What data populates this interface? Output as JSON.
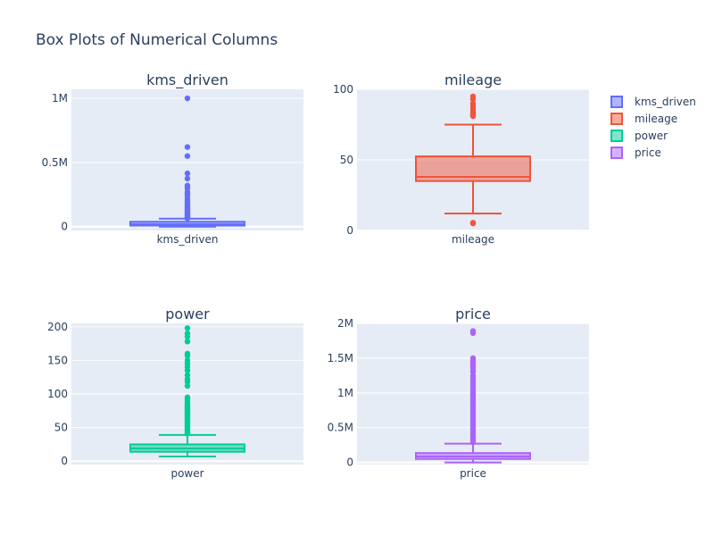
{
  "chart_data": {
    "type": "box",
    "title": "Box Plots of Numerical Columns",
    "legend": {
      "placement": "top-right",
      "entries": [
        "kms_driven",
        "mileage",
        "power",
        "price"
      ]
    },
    "subplots": [
      {
        "title": "kms_driven",
        "category": "kms_driven",
        "color": "#636efa",
        "ylim": [
          -30000,
          1070000
        ],
        "yticks": [
          {
            "value": 0,
            "label": "0"
          },
          {
            "value": 500000,
            "label": "0.5M"
          },
          {
            "value": 1000000,
            "label": "1M"
          }
        ],
        "box": {
          "min": 0,
          "q1": 8000,
          "median": 18000,
          "q3": 38000,
          "max": 62000
        },
        "outliers": [
          1000000,
          620000,
          550000,
          415000,
          375000,
          320000,
          300000,
          270000,
          255000,
          240000,
          215000,
          200000,
          185000,
          170000,
          160000,
          150000,
          140000,
          130000,
          120000,
          110000,
          102000,
          95000,
          88000,
          82000,
          77000,
          72000,
          68000,
          65000
        ]
      },
      {
        "title": "mileage",
        "category": "mileage",
        "color": "#ef553b",
        "ylim": [
          0,
          100
        ],
        "yticks": [
          {
            "value": 0,
            "label": "0"
          },
          {
            "value": 50,
            "label": "50"
          },
          {
            "value": 100,
            "label": "100"
          }
        ],
        "box": {
          "min": 12,
          "q1": 35,
          "median": 38,
          "q3": 52.5,
          "max": 75
        },
        "outliers": [
          95,
          93,
          90,
          88,
          86,
          84,
          83,
          82,
          81,
          5,
          5.5
        ]
      },
      {
        "title": "power",
        "category": "power",
        "color": "#00cc96",
        "ylim": [
          -5,
          205
        ],
        "yticks": [
          {
            "value": 0,
            "label": "0"
          },
          {
            "value": 50,
            "label": "50"
          },
          {
            "value": 100,
            "label": "100"
          },
          {
            "value": 150,
            "label": "150"
          },
          {
            "value": 200,
            "label": "200"
          }
        ],
        "box": {
          "min": 7,
          "q1": 14,
          "median": 19,
          "q3": 25,
          "max": 39
        },
        "outliers": [
          198,
          190,
          185,
          178,
          160,
          157,
          150,
          145,
          140,
          135,
          128,
          122,
          118,
          112,
          95,
          92,
          88,
          85,
          82,
          80,
          78,
          76,
          74,
          72,
          70,
          68,
          66,
          64,
          62,
          60,
          58,
          56,
          54,
          52,
          50,
          48,
          46,
          44,
          42,
          41
        ]
      },
      {
        "title": "price",
        "category": "price",
        "color": "#ab63fa",
        "ylim": [
          -30000,
          2000000
        ],
        "yticks": [
          {
            "value": 0,
            "label": "0"
          },
          {
            "value": 500000,
            "label": "0.5M"
          },
          {
            "value": 1000000,
            "label": "1M"
          },
          {
            "value": 1500000,
            "label": "1.5M"
          },
          {
            "value": 2000000,
            "label": "2M"
          }
        ],
        "box": {
          "min": 0,
          "q1": 50000,
          "median": 85000,
          "q3": 135000,
          "max": 270000
        },
        "outliers": [
          1890000,
          1860000,
          1500000,
          1470000,
          1440000,
          1410000,
          1380000,
          1340000,
          1300000,
          1250000,
          1220000,
          1180000,
          1140000,
          1100000,
          1060000,
          1030000,
          1000000,
          970000,
          940000,
          910000,
          880000,
          850000,
          820000,
          790000,
          760000,
          730000,
          700000,
          670000,
          640000,
          610000,
          580000,
          550000,
          520000,
          490000,
          460000,
          430000,
          400000,
          370000,
          340000,
          310000,
          290000
        ]
      }
    ]
  }
}
